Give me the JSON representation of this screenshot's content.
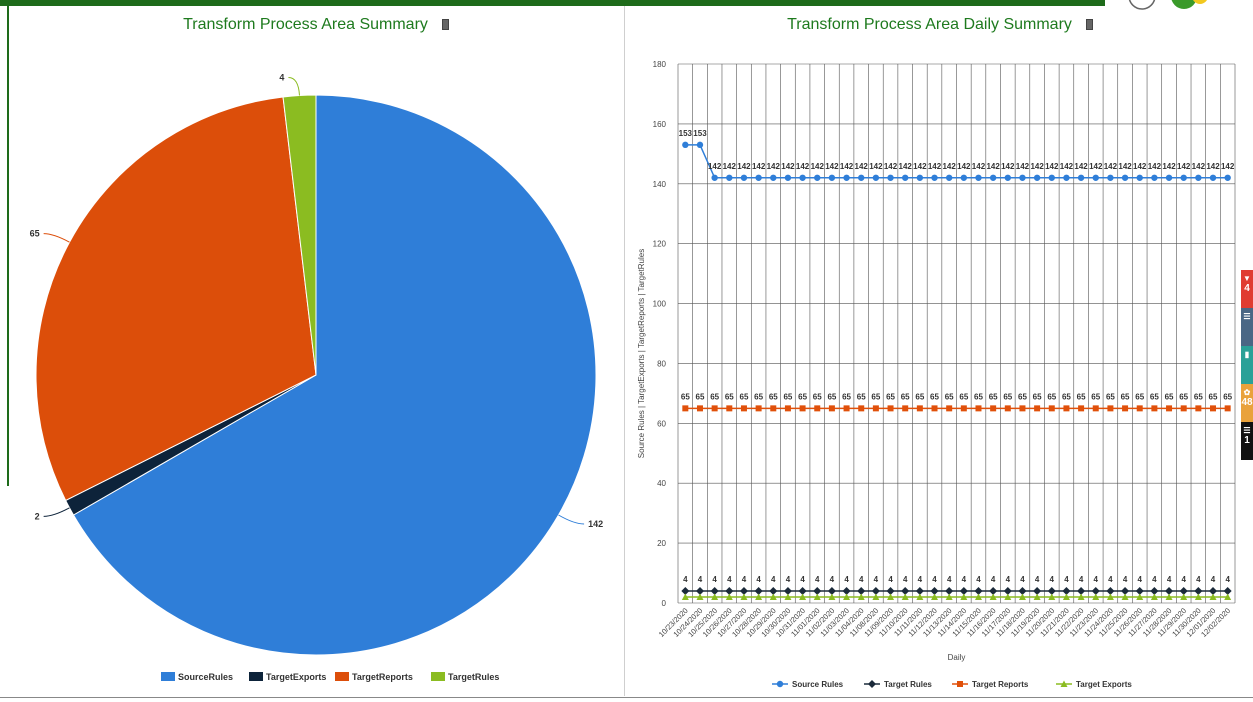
{
  "left": {
    "title": "Transform Process Area Summary",
    "icon": "document-icon"
  },
  "right": {
    "title": "Transform Process Area Daily Summary",
    "icon": "document-icon"
  },
  "colors": {
    "frame": "#1e6b1a",
    "source": "#2f7ed8",
    "target_rules_line": "#1b2a3a",
    "reports": "#e0500a",
    "exports": "#8bbc21",
    "pie_exports": "#0d233a"
  },
  "side_tabs": [
    {
      "label": "4",
      "color": "#e03c31",
      "icon": "chevron-down-icon"
    },
    {
      "label": "",
      "color": "#4a6785",
      "icon": "list-icon"
    },
    {
      "label": "",
      "color": "#2aa198",
      "icon": "book-icon"
    },
    {
      "label": "48",
      "color": "#e9a23b",
      "icon": "gear-icon"
    },
    {
      "label": "1",
      "color": "#111111",
      "icon": "list-icon"
    }
  ],
  "chart_data": [
    {
      "type": "pie",
      "title": "Transform Process Area Summary",
      "slices": [
        {
          "label": "SourceRules",
          "value": 142,
          "color": "#2f7ed8"
        },
        {
          "label": "TargetExports",
          "value": 2,
          "color": "#0d233a"
        },
        {
          "label": "TargetReports",
          "value": 65,
          "color": "#dc4e0a"
        },
        {
          "label": "TargetRules",
          "value": 4,
          "color": "#8bbc21"
        }
      ],
      "legend_position": "bottom"
    },
    {
      "type": "line",
      "title": "Transform Process Area Daily Summary",
      "xlabel": "Daily",
      "ylabel": "Source Rules | TargetExports | TargetReports | TargetRules",
      "ylim": [
        0,
        180
      ],
      "yticks": [
        0,
        20,
        40,
        60,
        80,
        100,
        120,
        140,
        160,
        180
      ],
      "grid": true,
      "legend_position": "bottom",
      "categories": [
        "10/23/2020",
        "10/24/2020",
        "10/25/2020",
        "10/26/2020",
        "10/27/2020",
        "10/28/2020",
        "10/29/2020",
        "10/30/2020",
        "10/31/2020",
        "11/01/2020",
        "11/02/2020",
        "11/03/2020",
        "11/04/2020",
        "11/08/2020",
        "11/09/2020",
        "11/10/2020",
        "11/11/2020",
        "11/12/2020",
        "11/13/2020",
        "11/14/2020",
        "11/15/2020",
        "11/16/2020",
        "11/17/2020",
        "11/18/2020",
        "11/19/2020",
        "11/20/2020",
        "11/21/2020",
        "11/22/2020",
        "11/23/2020",
        "11/24/2020",
        "11/25/2020",
        "11/26/2020",
        "11/27/2020",
        "11/28/2020",
        "11/29/2020",
        "11/30/2020",
        "12/01/2020",
        "12/02/2020"
      ],
      "series": [
        {
          "name": "Source Rules",
          "color": "#2f7ed8",
          "marker": "circle",
          "values": [
            153,
            153,
            142,
            142,
            142,
            142,
            142,
            142,
            142,
            142,
            142,
            142,
            142,
            142,
            142,
            142,
            142,
            142,
            142,
            142,
            142,
            142,
            142,
            142,
            142,
            142,
            142,
            142,
            142,
            142,
            142,
            142,
            142,
            142,
            142,
            142,
            142,
            142
          ]
        },
        {
          "name": "Target Rules",
          "color": "#1b2a3a",
          "marker": "diamond",
          "values": [
            4,
            4,
            4,
            4,
            4,
            4,
            4,
            4,
            4,
            4,
            4,
            4,
            4,
            4,
            4,
            4,
            4,
            4,
            4,
            4,
            4,
            4,
            4,
            4,
            4,
            4,
            4,
            4,
            4,
            4,
            4,
            4,
            4,
            4,
            4,
            4,
            4,
            4
          ]
        },
        {
          "name": "Target Reports",
          "color": "#e0500a",
          "marker": "square",
          "values": [
            65,
            65,
            65,
            65,
            65,
            65,
            65,
            65,
            65,
            65,
            65,
            65,
            65,
            65,
            65,
            65,
            65,
            65,
            65,
            65,
            65,
            65,
            65,
            65,
            65,
            65,
            65,
            65,
            65,
            65,
            65,
            65,
            65,
            65,
            65,
            65,
            65,
            65
          ]
        },
        {
          "name": "Target Exports",
          "color": "#8bbc21",
          "marker": "triangle",
          "values": [
            2,
            2,
            2,
            2,
            2,
            2,
            2,
            2,
            2,
            2,
            2,
            2,
            2,
            2,
            2,
            2,
            2,
            2,
            2,
            2,
            2,
            2,
            2,
            2,
            2,
            2,
            2,
            2,
            2,
            2,
            2,
            2,
            2,
            2,
            2,
            2,
            2,
            2
          ]
        }
      ]
    }
  ]
}
